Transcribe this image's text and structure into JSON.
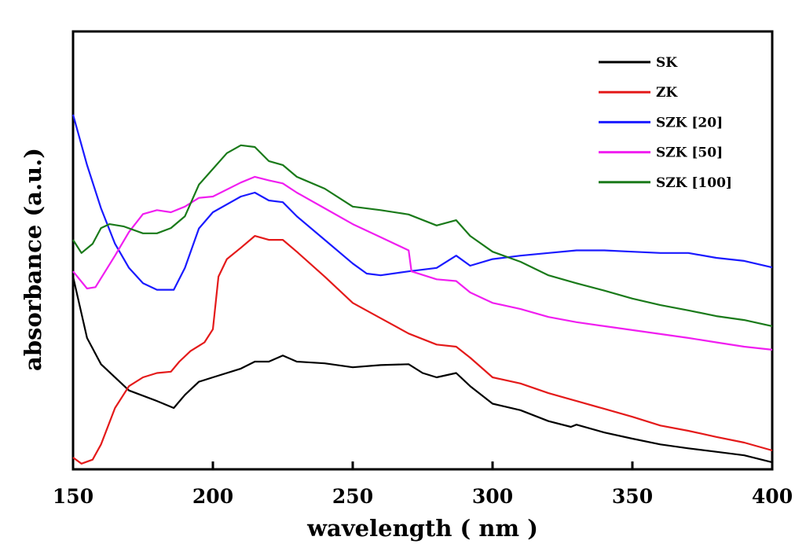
{
  "chart_data": {
    "type": "line",
    "xlabel": "wavelength ( nm )",
    "ylabel": "absorbance (a.u.)",
    "xlim": [
      150,
      400
    ],
    "ylim": [
      0,
      1
    ],
    "xticks": [
      150,
      200,
      250,
      300,
      350,
      400
    ],
    "yticks": [],
    "grid": false,
    "legend_position": "top-right",
    "series": [
      {
        "name": "SK",
        "color": "#000000",
        "x": [
          150,
          155,
          160,
          170,
          180,
          186,
          190,
          195,
          200,
          210,
          215,
          220,
          225,
          230,
          240,
          250,
          260,
          270,
          275,
          280,
          287,
          292,
          300,
          310,
          320,
          328,
          330,
          340,
          350,
          360,
          370,
          380,
          390,
          400
        ],
        "y": [
          0.44,
          0.3,
          0.24,
          0.18,
          0.156,
          0.14,
          0.17,
          0.2,
          0.21,
          0.23,
          0.246,
          0.246,
          0.26,
          0.246,
          0.242,
          0.233,
          0.238,
          0.24,
          0.22,
          0.21,
          0.22,
          0.19,
          0.15,
          0.135,
          0.11,
          0.097,
          0.102,
          0.084,
          0.07,
          0.057,
          0.048,
          0.04,
          0.032,
          0.016
        ]
      },
      {
        "name": "ZK",
        "color": "#e41a1a",
        "x": [
          150,
          153,
          157,
          160,
          165,
          170,
          175,
          180,
          185,
          188,
          192,
          197,
          200,
          202,
          205,
          210,
          215,
          220,
          225,
          230,
          240,
          250,
          260,
          270,
          280,
          287,
          292,
          300,
          310,
          320,
          330,
          340,
          350,
          360,
          370,
          380,
          390,
          400
        ],
        "y": [
          0.027,
          0.013,
          0.022,
          0.057,
          0.14,
          0.19,
          0.21,
          0.22,
          0.223,
          0.246,
          0.27,
          0.29,
          0.32,
          0.44,
          0.48,
          0.506,
          0.533,
          0.524,
          0.524,
          0.497,
          0.44,
          0.38,
          0.345,
          0.31,
          0.285,
          0.28,
          0.255,
          0.21,
          0.196,
          0.174,
          0.156,
          0.138,
          0.12,
          0.1,
          0.088,
          0.074,
          0.061,
          0.043
        ]
      },
      {
        "name": "SZK [20]",
        "color": "#1a1aff",
        "x": [
          150,
          155,
          160,
          165,
          170,
          175,
          180,
          186,
          190,
          195,
          200,
          210,
          215,
          220,
          225,
          230,
          240,
          250,
          255,
          260,
          270,
          280,
          287,
          292,
          300,
          310,
          320,
          330,
          340,
          350,
          360,
          370,
          380,
          390,
          400
        ],
        "y": [
          0.81,
          0.695,
          0.596,
          0.515,
          0.46,
          0.425,
          0.41,
          0.41,
          0.46,
          0.55,
          0.587,
          0.623,
          0.632,
          0.614,
          0.61,
          0.578,
          0.524,
          0.47,
          0.447,
          0.443,
          0.452,
          0.46,
          0.488,
          0.465,
          0.48,
          0.488,
          0.494,
          0.5,
          0.5,
          0.497,
          0.494,
          0.494,
          0.483,
          0.476,
          0.461
        ]
      },
      {
        "name": "SZK [50]",
        "color": "#f01ef0",
        "x": [
          150,
          155,
          158,
          165,
          170,
          175,
          180,
          185,
          190,
          195,
          200,
          210,
          215,
          220,
          225,
          230,
          240,
          250,
          260,
          270,
          271,
          280,
          287,
          292,
          300,
          310,
          320,
          330,
          340,
          350,
          360,
          370,
          380,
          390,
          400
        ],
        "y": [
          0.452,
          0.413,
          0.416,
          0.488,
          0.542,
          0.583,
          0.592,
          0.587,
          0.6,
          0.62,
          0.623,
          0.655,
          0.668,
          0.66,
          0.653,
          0.632,
          0.596,
          0.56,
          0.53,
          0.5,
          0.452,
          0.434,
          0.43,
          0.404,
          0.38,
          0.366,
          0.348,
          0.336,
          0.327,
          0.318,
          0.309,
          0.3,
          0.29,
          0.28,
          0.273
        ]
      },
      {
        "name": "SZK [100]",
        "color": "#1a7a1a",
        "x": [
          150,
          153,
          157,
          160,
          163,
          168,
          175,
          180,
          185,
          190,
          195,
          200,
          205,
          210,
          215,
          220,
          225,
          230,
          240,
          250,
          260,
          270,
          280,
          287,
          292,
          300,
          310,
          320,
          330,
          340,
          350,
          360,
          370,
          380,
          390,
          400
        ],
        "y": [
          0.524,
          0.494,
          0.515,
          0.551,
          0.56,
          0.555,
          0.539,
          0.539,
          0.551,
          0.578,
          0.65,
          0.686,
          0.722,
          0.74,
          0.736,
          0.704,
          0.695,
          0.668,
          0.641,
          0.6,
          0.592,
          0.582,
          0.557,
          0.569,
          0.533,
          0.497,
          0.474,
          0.443,
          0.425,
          0.408,
          0.39,
          0.375,
          0.363,
          0.35,
          0.341,
          0.327
        ]
      }
    ]
  }
}
